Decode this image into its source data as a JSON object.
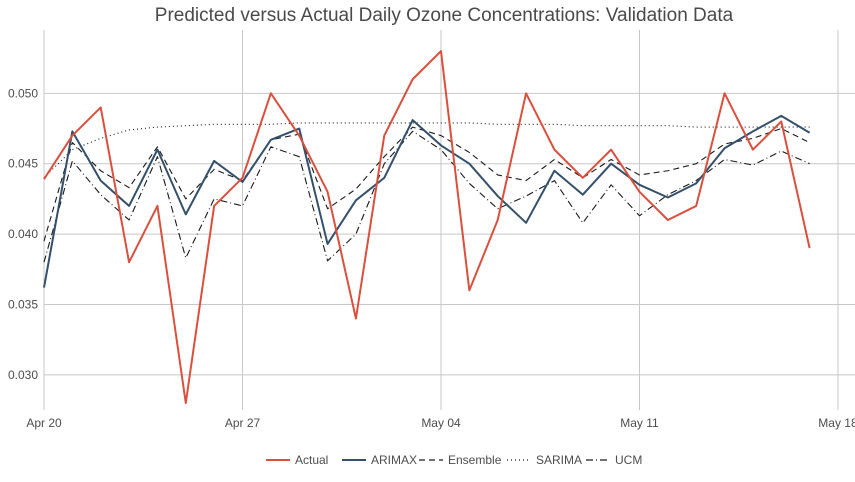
{
  "chart_data": {
    "type": "line",
    "title": "Predicted versus Actual Daily Ozone Concentrations: Validation Data",
    "xlabel": "",
    "ylabel": "",
    "x_ticks": [
      "Apr 20",
      "Apr 27",
      "May 04",
      "May 11",
      "May 18"
    ],
    "x": [
      "Apr 20",
      "Apr 21",
      "Apr 22",
      "Apr 23",
      "Apr 24",
      "Apr 25",
      "Apr 26",
      "Apr 27",
      "Apr 28",
      "Apr 29",
      "Apr 30",
      "May 01",
      "May 02",
      "May 03",
      "May 04",
      "May 05",
      "May 06",
      "May 07",
      "May 08",
      "May 09",
      "May 10",
      "May 11",
      "May 12",
      "May 13",
      "May 14",
      "May 15",
      "May 16",
      "May 17"
    ],
    "y_ticks": [
      "0.030",
      "0.035",
      "0.040",
      "0.045",
      "0.050"
    ],
    "ylim": [
      0.0275,
      0.0545
    ],
    "grid": true,
    "legend_position": "bottom",
    "series": [
      {
        "name": "Actual",
        "color": "#d9503f",
        "dash": "solid",
        "values": [
          0.0439,
          0.047,
          0.049,
          0.038,
          0.042,
          0.028,
          0.042,
          0.044,
          0.05,
          0.047,
          0.043,
          0.034,
          0.047,
          0.051,
          0.053,
          0.036,
          0.041,
          0.05,
          0.046,
          0.044,
          0.046,
          0.043,
          0.041,
          0.042,
          0.05,
          0.046,
          0.048,
          0.039
        ]
      },
      {
        "name": "ARIMAX",
        "color": "#34506b",
        "dash": "solid",
        "values": [
          0.0362,
          0.0473,
          0.0438,
          0.042,
          0.046,
          0.0414,
          0.0452,
          0.0437,
          0.0467,
          0.0475,
          0.0393,
          0.0424,
          0.044,
          0.0481,
          0.0463,
          0.045,
          0.0427,
          0.0408,
          0.0445,
          0.0428,
          0.045,
          0.0435,
          0.0426,
          0.0436,
          0.0461,
          0.0473,
          0.0484,
          0.0472
        ]
      },
      {
        "name": "Ensemble",
        "color": "#1a1a1a",
        "dash": "6,4",
        "values": [
          0.0395,
          0.0465,
          0.0445,
          0.0433,
          0.0462,
          0.0425,
          0.0446,
          0.0438,
          0.0467,
          0.0471,
          0.0418,
          0.0432,
          0.0455,
          0.0476,
          0.047,
          0.0458,
          0.0442,
          0.0438,
          0.0453,
          0.044,
          0.0453,
          0.0442,
          0.0445,
          0.045,
          0.0464,
          0.0468,
          0.0475,
          0.0465
        ]
      },
      {
        "name": "SARIMA",
        "color": "#1a1a1a",
        "dash": "1,3",
        "values": [
          0.044,
          0.046,
          0.0468,
          0.0474,
          0.0476,
          0.0477,
          0.0478,
          0.0478,
          0.0478,
          0.0479,
          0.0479,
          0.0479,
          0.0479,
          0.0479,
          0.0479,
          0.0479,
          0.0478,
          0.0478,
          0.0478,
          0.0477,
          0.0477,
          0.0477,
          0.0477,
          0.0476,
          0.0476,
          0.0476,
          0.0476,
          0.0476
        ]
      },
      {
        "name": "UCM",
        "color": "#1a1a1a",
        "dash": "7,3,1,3",
        "values": [
          0.038,
          0.0452,
          0.0428,
          0.041,
          0.0455,
          0.0383,
          0.0425,
          0.042,
          0.0462,
          0.0455,
          0.0381,
          0.04,
          0.045,
          0.0473,
          0.046,
          0.0436,
          0.0418,
          0.0427,
          0.0438,
          0.0408,
          0.0435,
          0.0413,
          0.0428,
          0.0438,
          0.0453,
          0.0449,
          0.0459,
          0.045
        ]
      }
    ]
  }
}
